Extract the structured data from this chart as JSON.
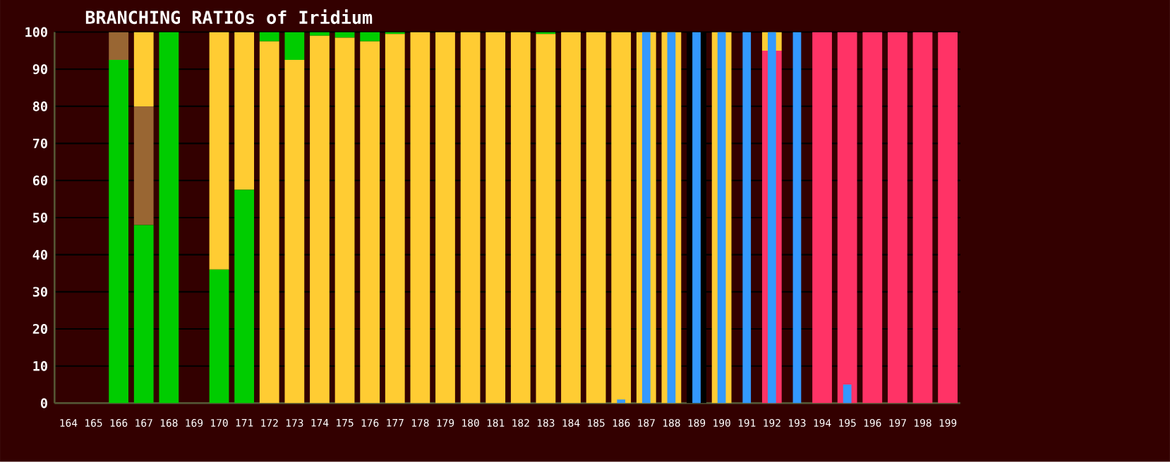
{
  "chart_data": [
    {
      "type": "bar",
      "title": "BRANCHING RATIOs of Iridium",
      "stacked": true,
      "grid": "y",
      "categories": [
        "164",
        "165",
        "166",
        "167",
        "168",
        "169",
        "170",
        "171",
        "172",
        "173",
        "174",
        "175",
        "176",
        "177",
        "178",
        "179",
        "180",
        "181",
        "182",
        "183",
        "184",
        "185",
        "186",
        "187",
        "188",
        "189",
        "190",
        "191",
        "192",
        "193",
        "194",
        "195",
        "196",
        "197",
        "198",
        "199"
      ],
      "ylim": [
        0,
        100
      ],
      "yticks": [
        0,
        10,
        20,
        30,
        40,
        50,
        60,
        70,
        80,
        90,
        100
      ],
      "series": [
        {
          "color": "#00cc00",
          "values": [
            null,
            null,
            92.5,
            48,
            100,
            null,
            36,
            57.5,
            null,
            null,
            null,
            null,
            null,
            null,
            null,
            null,
            null,
            null,
            null,
            null,
            null,
            null,
            null,
            null,
            null,
            null,
            null,
            null,
            null,
            null,
            null,
            null,
            null,
            null,
            null,
            null
          ]
        },
        {
          "color": "#ff3366",
          "values": [
            null,
            null,
            null,
            null,
            null,
            null,
            null,
            null,
            null,
            null,
            null,
            null,
            null,
            null,
            null,
            null,
            null,
            null,
            null,
            null,
            null,
            null,
            null,
            null,
            null,
            null,
            null,
            null,
            95,
            null,
            100,
            100,
            100,
            100,
            100,
            100
          ]
        },
        {
          "color": "#996633",
          "values": [
            null,
            null,
            7.5,
            32,
            null,
            null,
            null,
            null,
            null,
            null,
            null,
            null,
            null,
            null,
            null,
            null,
            null,
            null,
            null,
            null,
            null,
            null,
            null,
            null,
            null,
            null,
            null,
            null,
            null,
            null,
            null,
            null,
            null,
            null,
            null,
            null
          ]
        },
        {
          "color": "#ffcc33",
          "values": [
            null,
            null,
            null,
            20,
            null,
            null,
            64,
            42.5,
            97.5,
            92.5,
            99,
            98.5,
            97.5,
            99.5,
            100,
            100,
            100,
            100,
            100,
            99.5,
            100,
            100,
            100,
            100,
            100,
            null,
            100,
            null,
            5,
            null,
            null,
            null,
            null,
            null,
            null,
            null
          ]
        },
        {
          "color": "#00cc00",
          "values": [
            null,
            null,
            null,
            null,
            null,
            null,
            null,
            null,
            2.5,
            7.5,
            1,
            1.5,
            2.5,
            0.5,
            null,
            null,
            null,
            null,
            null,
            0.5,
            null,
            null,
            null,
            null,
            null,
            null,
            null,
            null,
            null,
            null,
            null,
            null,
            null,
            null,
            null,
            null
          ]
        },
        {
          "color": "#000000",
          "values": [
            null,
            null,
            null,
            null,
            null,
            null,
            null,
            null,
            null,
            null,
            null,
            null,
            null,
            null,
            null,
            null,
            null,
            null,
            null,
            null,
            null,
            null,
            null,
            null,
            null,
            100,
            null,
            null,
            null,
            null,
            null,
            null,
            null,
            null,
            null,
            null
          ]
        }
      ]
    },
    {
      "type": "bar",
      "tick_labels": false,
      "yticks": [
        0,
        10,
        20,
        30,
        40,
        50,
        60,
        70,
        80,
        90,
        100
      ],
      "categories": [
        "164",
        "165",
        "166",
        "167",
        "168",
        "169",
        "170",
        "171",
        "172",
        "173",
        "174",
        "175",
        "176",
        "177",
        "178",
        "179",
        "180",
        "181",
        "182",
        "183",
        "184",
        "185",
        "186",
        "187",
        "188",
        "189",
        "190",
        "191",
        "192",
        "193",
        "194",
        "195",
        "196",
        "197",
        "198",
        "199"
      ],
      "ylim": [
        0,
        100
      ],
      "series": [
        {
          "color": "#3399ff",
          "values": [
            null,
            null,
            null,
            null,
            null,
            null,
            null,
            null,
            null,
            null,
            null,
            null,
            null,
            null,
            null,
            null,
            null,
            null,
            null,
            null,
            null,
            null,
            1,
            100,
            100,
            100,
            100,
            100,
            100,
            100,
            null,
            5,
            null,
            null,
            null,
            null
          ]
        }
      ]
    }
  ]
}
